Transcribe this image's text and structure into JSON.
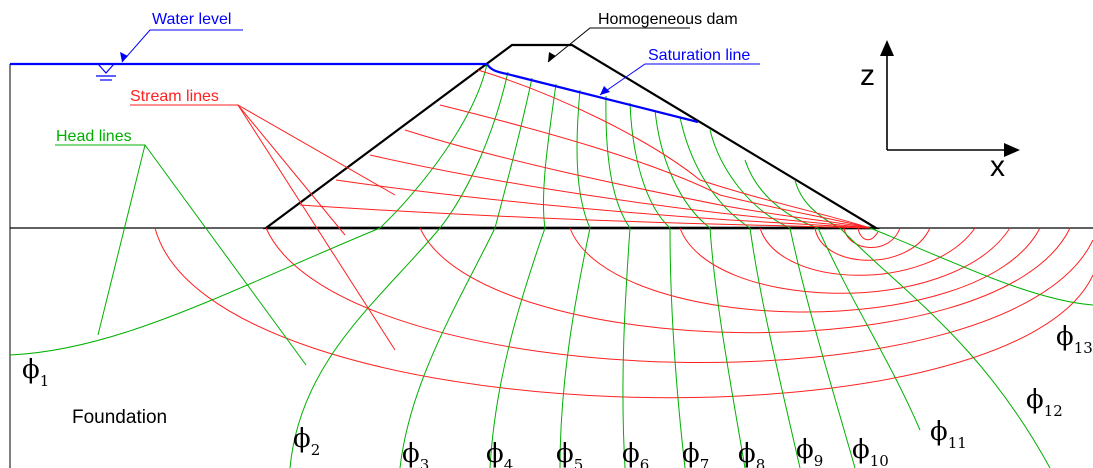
{
  "labels": {
    "water_level": "Water level",
    "homogeneous_dam": "Homogeneous dam",
    "saturation_line": "Saturation line",
    "stream_lines": "Stream lines",
    "head_lines": "Head lines",
    "foundation": "Foundation",
    "axis_z": "z",
    "axis_x": "x"
  },
  "head_line_labels": [
    {
      "symbol": "ϕ",
      "sub": "1"
    },
    {
      "symbol": "ϕ",
      "sub": "2"
    },
    {
      "symbol": "ϕ",
      "sub": "3"
    },
    {
      "symbol": "ϕ",
      "sub": "4"
    },
    {
      "symbol": "ϕ",
      "sub": "5"
    },
    {
      "symbol": "ϕ",
      "sub": "6"
    },
    {
      "symbol": "ϕ",
      "sub": "7"
    },
    {
      "symbol": "ϕ",
      "sub": "8"
    },
    {
      "symbol": "ϕ",
      "sub": "9"
    },
    {
      "symbol": "ϕ",
      "sub": "10"
    },
    {
      "symbol": "ϕ",
      "sub": "11"
    },
    {
      "symbol": "ϕ",
      "sub": "12"
    },
    {
      "symbol": "ϕ",
      "sub": "13"
    }
  ],
  "colors": {
    "water": "#0000ff",
    "stream": "#ff2020",
    "head": "#00b000",
    "structure": "#000000"
  }
}
